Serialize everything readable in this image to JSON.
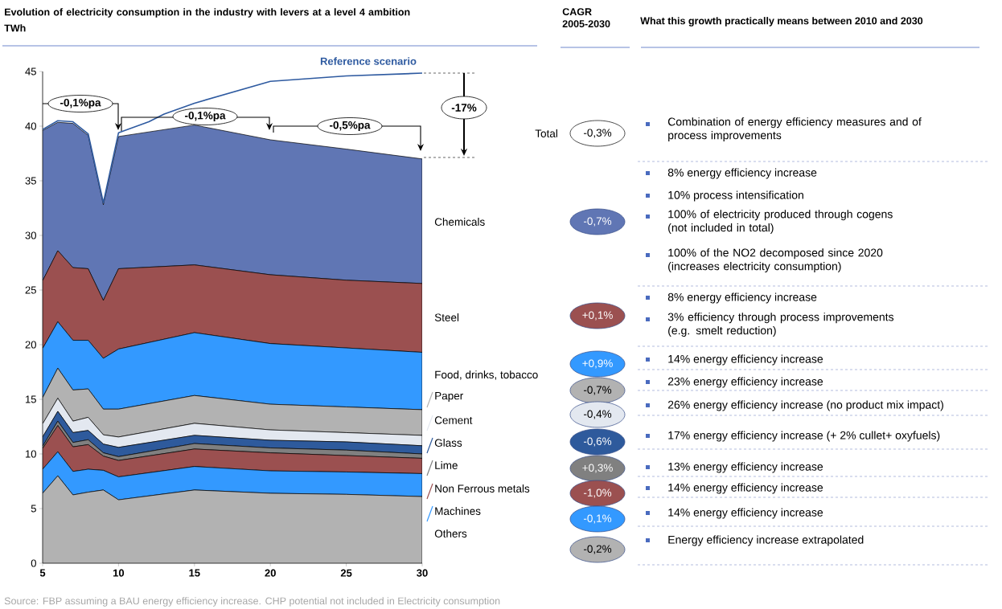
{
  "chart_data": {
    "type": "area",
    "stacked": true,
    "title": "Evolution of electricity consumption in the industry with levers at a level 4 ambition",
    "ylabel": "TWh",
    "legend": "right",
    "x": [
      5,
      6,
      7,
      8,
      9,
      10,
      15,
      20,
      25,
      30
    ],
    "xlim": [
      5,
      30
    ],
    "xticks": [
      5,
      10,
      15,
      20,
      25,
      30
    ],
    "ylim": [
      0,
      45
    ],
    "yticks": [
      0,
      5,
      10,
      15,
      20,
      25,
      30,
      35,
      40,
      45
    ],
    "series": [
      {
        "name": "Others",
        "color": "#b2b2b2",
        "values": [
          6.4,
          8.0,
          6.25,
          6.5,
          6.7,
          5.8,
          6.7,
          6.4,
          6.3,
          6.1
        ]
      },
      {
        "name": "Machines",
        "color": "#3399ff",
        "values": [
          2.2,
          2.2,
          2.15,
          2.1,
          1.8,
          2.1,
          2.15,
          2.05,
          2.05,
          2.1
        ]
      },
      {
        "name": "Non Ferrous metals",
        "color": "#9b5050",
        "values": [
          1.9,
          2.4,
          2.25,
          2.25,
          1.3,
          1.5,
          1.6,
          1.65,
          1.5,
          1.4
        ]
      },
      {
        "name": "Lime",
        "color": "#808080",
        "values": [
          0.2,
          0.4,
          0.4,
          0.45,
          0.3,
          0.35,
          0.5,
          0.45,
          0.5,
          0.4
        ]
      },
      {
        "name": "Glass",
        "color": "#2e5a9c",
        "values": [
          0.85,
          0.9,
          0.9,
          0.85,
          0.8,
          0.85,
          0.75,
          0.7,
          0.75,
          0.75
        ]
      },
      {
        "name": "Cement",
        "color": "#e3e8f0",
        "values": [
          1.2,
          1.2,
          1.05,
          1.2,
          0.85,
          0.95,
          1.1,
          0.95,
          0.85,
          0.95
        ]
      },
      {
        "name": "Paper",
        "color": "#b2b2b2",
        "values": [
          2.4,
          2.75,
          2.85,
          2.6,
          2.35,
          2.55,
          2.55,
          2.35,
          2.35,
          2.35
        ]
      },
      {
        "name": "Food, drinks, tobacco",
        "color": "#3399ff",
        "values": [
          4.5,
          4.25,
          4.55,
          4.45,
          4.65,
          5.5,
          5.75,
          5.55,
          5.4,
          5.25
        ]
      },
      {
        "name": "Steel",
        "color": "#9b5050",
        "values": [
          6.2,
          6.5,
          6.65,
          6.55,
          5.3,
          7.35,
          6.2,
          6.3,
          6.2,
          6.3
        ]
      },
      {
        "name": "Chemicals",
        "color": "#6076b4",
        "values": [
          13.75,
          11.75,
          13.2,
          12.2,
          8.75,
          12.1,
          12.8,
          12.35,
          12.0,
          11.4
        ]
      },
      {
        "name": "Reference scenario",
        "type": "line",
        "color": "#2e5aa0",
        "x": [
          5,
          6,
          7,
          8,
          9,
          10,
          12,
          13,
          15,
          20,
          25,
          30
        ],
        "values": [
          39.7,
          40.5,
          40.4,
          39.3,
          33.0,
          39.4,
          40.4,
          41.1,
          42.1,
          44.1,
          44.6,
          44.85
        ]
      }
    ],
    "annotations": [
      "CAGR 2005-2030",
      "What this growth practically means between 2010 and 2030",
      "-0,1%pa",
      "-0,1%pa",
      "-0,5%pa",
      "-17%",
      "Total",
      "-0,3%",
      "-0,7%",
      "+0,1%",
      "+0,9%",
      "-0,7%",
      "-0,4%",
      "-0,6%",
      "+0,3%",
      "-1,0%",
      "-0,1%",
      "-0,2%",
      "Combination of energy efficiency measures and of process improvements",
      "8% energy efficiency increase",
      "10% process intensification",
      "100% of electricity produced through cogens (not included in total)",
      "100% of  the NO2 decomposed since 2020 (increases electricity consumption)",
      "8% energy efficiency increase",
      "3% efficiency through process improvements (e.g. smelt reduction)",
      "14% energy efficiency increase",
      "23% energy efficiency increase",
      "26% energy efficiency increase (no product mix impact)",
      "17% energy efficiency increase (+ 2% cullet+ oxyfuels)",
      "13% energy efficiency increase",
      "14% energy efficiency increase",
      "14% energy efficiency increase",
      "Energy efficiency increase extrapolated",
      "Source: FBP assuming a BAU energy efficiency increase. CHP potential not included in Electricity consumption"
    ]
  }
}
